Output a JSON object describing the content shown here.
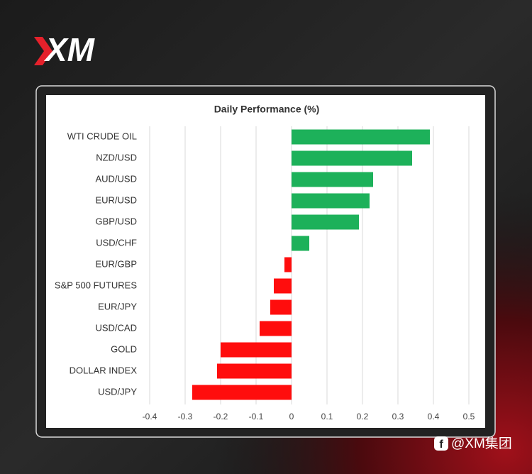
{
  "logo": "XM",
  "watermark": "@XM集团",
  "chart_data": {
    "type": "barh",
    "title": "Daily Performance (%)",
    "categories": [
      "WTI CRUDE OIL",
      "NZD/USD",
      "AUD/USD",
      "EUR/USD",
      "GBP/USD",
      "USD/CHF",
      "EUR/GBP",
      "S&P 500 FUTURES",
      "EUR/JPY",
      "USD/CAD",
      "GOLD",
      "DOLLAR INDEX",
      "USD/JPY"
    ],
    "values": [
      0.39,
      0.34,
      0.23,
      0.22,
      0.19,
      0.05,
      -0.02,
      -0.05,
      -0.06,
      -0.09,
      -0.2,
      -0.21,
      -0.28
    ],
    "colors": {
      "positive": "#1db15a",
      "negative": "#ff0d0d"
    },
    "xlim": [
      -0.4,
      0.5
    ],
    "xticks": [
      -0.4,
      -0.3,
      -0.2,
      -0.1,
      0,
      0.1,
      0.2,
      0.3,
      0.4,
      0.5
    ],
    "grid": true
  }
}
